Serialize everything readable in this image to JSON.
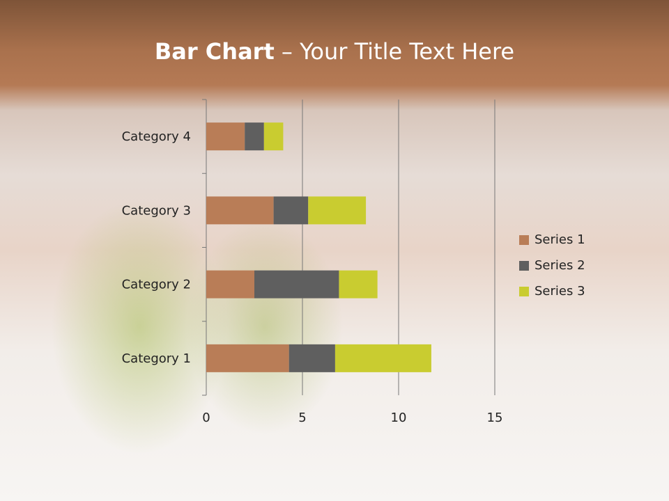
{
  "title": {
    "bold": "Bar Chart",
    "rest": " – Your Title Text Here"
  },
  "chart_data": {
    "type": "bar",
    "orientation": "horizontal",
    "stacked": true,
    "categories": [
      "Category 1",
      "Category 2",
      "Category 3",
      "Category 4"
    ],
    "series": [
      {
        "name": "Series 1",
        "values": [
          4.3,
          2.5,
          3.5,
          2
        ],
        "color": "#b97d57"
      },
      {
        "name": "Series 2",
        "values": [
          2.4,
          4.4,
          1.8,
          1
        ],
        "color": "#5f5f5f"
      },
      {
        "name": "Series 3",
        "values": [
          5,
          2,
          3,
          1
        ],
        "color": "#c9cc30"
      }
    ],
    "xlim": [
      0,
      15
    ],
    "xticks": [
      "0",
      "5",
      "10",
      "15"
    ],
    "grid": true,
    "legend": "right"
  }
}
